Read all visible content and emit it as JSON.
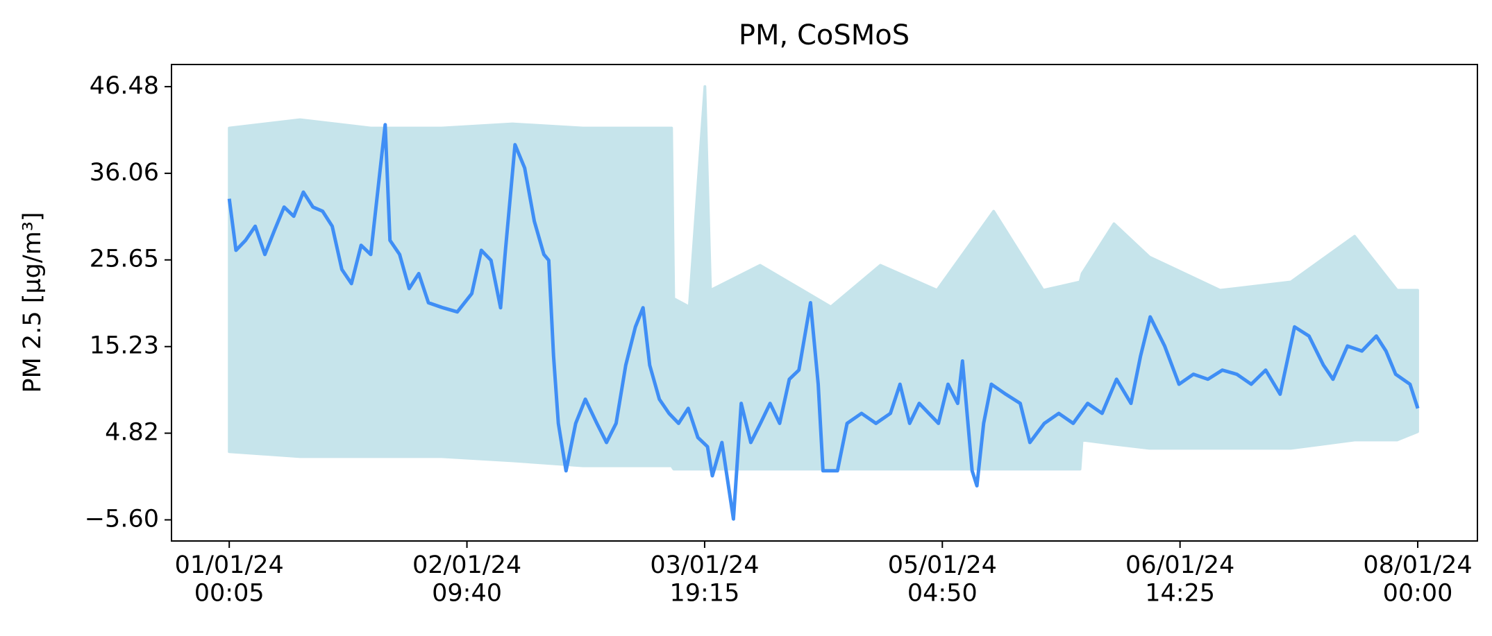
{
  "chart_data": {
    "type": "line",
    "title": "PM, CoSMoS",
    "y_label": "PM 2.5 [µg/m³]",
    "xlim": [
      -8.16,
      176.35
    ],
    "ylim": [
      -8.14,
      49.14
    ],
    "xticks": [
      {
        "value": 0,
        "label": "01/01/24\n00:05"
      },
      {
        "value": 33.583,
        "label": "02/01/24\n09:40"
      },
      {
        "value": 67.167,
        "label": "03/01/24\n19:15"
      },
      {
        "value": 100.75,
        "label": "05/01/24\n04:50"
      },
      {
        "value": 134.333,
        "label": "06/01/24\n14:25"
      },
      {
        "value": 167.917,
        "label": "08/01/24\n00:00"
      }
    ],
    "yticks": [
      {
        "value": -5.6,
        "label": "−5.60"
      },
      4.82,
      15.23,
      25.65,
      36.06,
      46.48
    ],
    "grid": false,
    "band": {
      "color": "#c6e4eb",
      "x": [
        0,
        10,
        20,
        30,
        40,
        50,
        62.5,
        62.8,
        65,
        67.2,
        68,
        75,
        85,
        92,
        100,
        108,
        115,
        120.2,
        120.5,
        125,
        130,
        140,
        150,
        159,
        165,
        167.9
      ],
      "lower": [
        2.6,
        2,
        2,
        2,
        1.5,
        0.9,
        0.9,
        0.5,
        0.5,
        0.5,
        0.5,
        0.5,
        0.5,
        0.5,
        0.5,
        0.5,
        0.5,
        0.5,
        4,
        3.5,
        3,
        3,
        3,
        4,
        4,
        5
      ],
      "upper": [
        41.5,
        42.5,
        41.5,
        41.5,
        42,
        41.5,
        41.5,
        21,
        20,
        46.5,
        22,
        25,
        20,
        25,
        22,
        31.5,
        22,
        23,
        24,
        30,
        26,
        22,
        23,
        28.5,
        22,
        22
      ]
    },
    "series": [
      {
        "color": "#3f8ef5",
        "x": [
          0,
          0.95,
          2.31,
          3.67,
          5.03,
          6.39,
          7.75,
          9.11,
          10.47,
          11.83,
          13.19,
          14.55,
          15.91,
          17.27,
          18.63,
          19.99,
          21.35,
          22.03,
          22.71,
          24.07,
          25.42,
          26.78,
          28.14,
          30.18,
          32.22,
          34.26,
          35.62,
          36.98,
          38.34,
          39.02,
          40.38,
          41.74,
          43.1,
          44.46,
          45.14,
          45.82,
          46.5,
          47.59,
          48.95,
          50.31,
          51.94,
          53.3,
          54.66,
          56.02,
          57.38,
          58.46,
          59.41,
          60.77,
          62.13,
          63.49,
          64.85,
          66.21,
          67.57,
          68.25,
          69.61,
          71.24,
          72.33,
          73.69,
          75.05,
          76.41,
          77.77,
          79.13,
          80.49,
          82.12,
          83.21,
          83.89,
          85.93,
          87.29,
          89.33,
          91.37,
          93.41,
          94.77,
          96.13,
          97.48,
          98.84,
          100.2,
          101.56,
          102.92,
          103.6,
          104.96,
          105.64,
          106.59,
          107.68,
          109.72,
          111.76,
          113.12,
          115.16,
          117.2,
          119.24,
          121.28,
          123.32,
          125.36,
          127.4,
          128.76,
          130.12,
          132.16,
          134.19,
          136.23,
          138.27,
          140.31,
          142.35,
          144.39,
          146.43,
          148.47,
          150.51,
          152.55,
          154.59,
          155.95,
          157.99,
          160.03,
          162.07,
          163.43,
          164.79,
          166.83,
          167.92
        ],
        "values": [
          33,
          26.8,
          28,
          29.7,
          26.3,
          29.2,
          32,
          30.9,
          33.8,
          32,
          31.5,
          29.7,
          24.5,
          22.8,
          27.4,
          26.3,
          36.7,
          41.9,
          28,
          26.3,
          22.2,
          24,
          20.5,
          19.9,
          19.4,
          21.6,
          26.8,
          25.6,
          19.9,
          26.8,
          39.5,
          36.7,
          30.3,
          26.3,
          25.6,
          14.1,
          6,
          0.3,
          6,
          8.9,
          6,
          3.7,
          6,
          13,
          17.6,
          19.9,
          13,
          8.9,
          7.2,
          6,
          7.8,
          4.3,
          3.2,
          -0.3,
          3.7,
          -5.5,
          8.4,
          3.7,
          6,
          8.4,
          6,
          11.3,
          12.4,
          20.5,
          10.7,
          0.3,
          0.3,
          6,
          7.2,
          6,
          7.2,
          10.7,
          6,
          8.4,
          7.2,
          6,
          10.7,
          8.4,
          13.5,
          0.3,
          -1.5,
          6,
          10.7,
          9.5,
          8.4,
          3.7,
          6,
          7.2,
          6,
          8.4,
          7.2,
          11.3,
          8.4,
          14.1,
          18.8,
          15.3,
          10.7,
          11.9,
          11.3,
          12.4,
          11.9,
          10.7,
          12.4,
          9.5,
          17.6,
          16.5,
          13,
          11.3,
          15.3,
          14.7,
          16.5,
          14.7,
          11.9,
          10.7,
          7.8
        ]
      }
    ]
  }
}
